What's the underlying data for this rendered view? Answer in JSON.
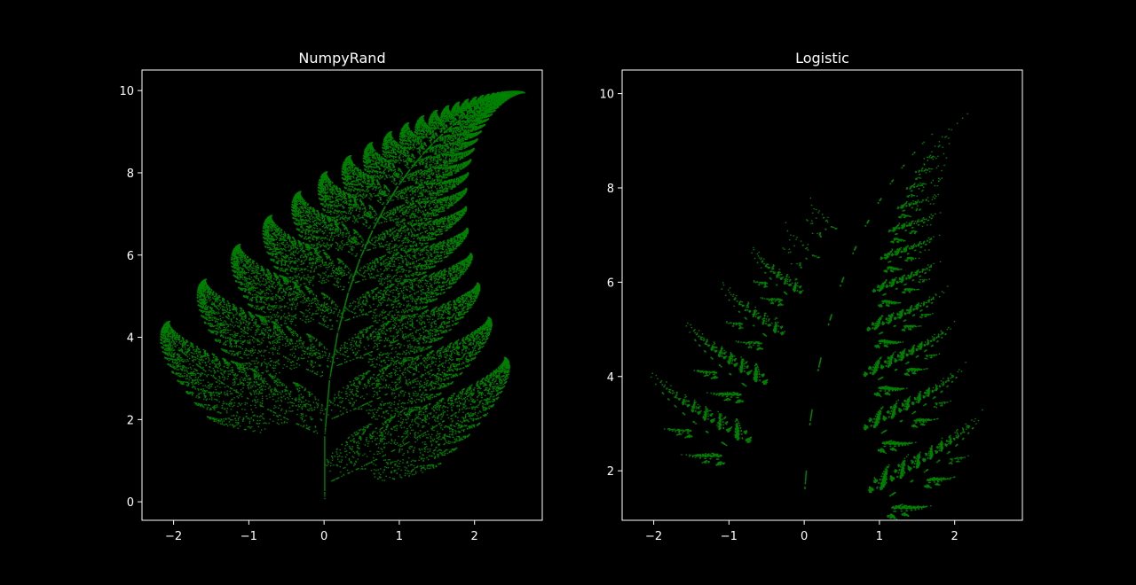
{
  "figure": {
    "background": "#000000",
    "foreground": "#ffffff",
    "point_color": "#008000"
  },
  "chart_data": [
    {
      "type": "scatter",
      "title": "NumpyRand",
      "xlabel": "",
      "ylabel": "",
      "xlim": [
        -2.42,
        2.9
      ],
      "ylim": [
        -0.45,
        10.5
      ],
      "xticks": [
        -2,
        -1,
        0,
        1,
        2
      ],
      "xtick_labels": [
        "−2",
        "−1",
        "0",
        "1",
        "2"
      ],
      "yticks": [
        0,
        2,
        4,
        6,
        8,
        10
      ],
      "ytick_labels": [
        "0",
        "2",
        "4",
        "6",
        "8",
        "10"
      ],
      "grid": false,
      "legend": "none",
      "series": [
        {
          "kind": "barnsley-fern-ifs",
          "generator": "uniform-random",
          "points": 30000,
          "color": "#008000"
        }
      ]
    },
    {
      "type": "scatter",
      "title": "Logistic",
      "xlabel": "",
      "ylabel": "",
      "xlim": [
        -2.42,
        2.9
      ],
      "ylim": [
        0.95,
        10.5
      ],
      "xticks": [
        -2,
        -1,
        0,
        1,
        2
      ],
      "xtick_labels": [
        "−2",
        "−1",
        "0",
        "1",
        "2"
      ],
      "yticks": [
        2,
        4,
        6,
        8,
        10
      ],
      "ytick_labels": [
        "2",
        "4",
        "6",
        "8",
        "10"
      ],
      "grid": false,
      "legend": "none",
      "series": [
        {
          "kind": "barnsley-fern-ifs",
          "generator": "logistic-map",
          "points": 30000,
          "color": "#008000"
        }
      ]
    }
  ]
}
